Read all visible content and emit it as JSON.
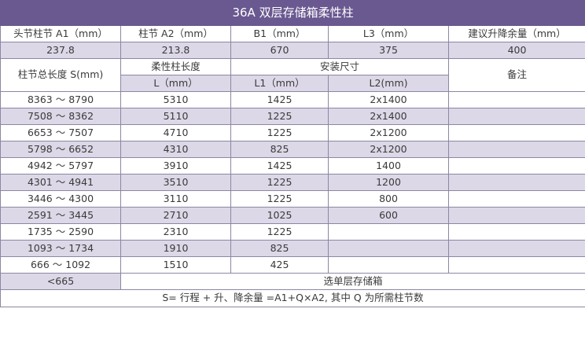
{
  "title": "36A 双层存储箱柔性柱",
  "header1": {
    "head_col": "头节柱节 A1（mm）",
    "col_a2": "柱节 A2（mm）",
    "col_b1": "B1（mm）",
    "col_l3": "L3（mm）",
    "col_lift": "建议升降余量（mm）"
  },
  "values1": {
    "a1": "237.8",
    "a2": "213.8",
    "b1": "670",
    "l3": "375",
    "lift": "400"
  },
  "header2": {
    "total_len": "柱节总长度 S(mm)",
    "flex_len": "柔性柱长度",
    "install_size": "安装尺寸",
    "remark": "备注",
    "l_mm": "L（mm）",
    "l1_mm": "L1（mm）",
    "l2_mm": "L2(mm)"
  },
  "rows": [
    {
      "s": "8363 ～ 8790",
      "l": "5310",
      "l1": "1425",
      "l2": "2x1400",
      "shade": false
    },
    {
      "s": "7508 ～ 8362",
      "l": "5110",
      "l1": "1225",
      "l2": "2x1400",
      "shade": true
    },
    {
      "s": "6653 ～ 7507",
      "l": "4710",
      "l1": "1225",
      "l2": "2x1200",
      "shade": false
    },
    {
      "s": "5798 ～ 6652",
      "l": "4310",
      "l1": "825",
      "l2": "2x1200",
      "shade": true
    },
    {
      "s": "4942 ～ 5797",
      "l": "3910",
      "l1": "1425",
      "l2": "1400",
      "shade": false
    },
    {
      "s": "4301 ～ 4941",
      "l": "3510",
      "l1": "1225",
      "l2": "1200",
      "shade": true
    },
    {
      "s": "3446 ～ 4300",
      "l": "3110",
      "l1": "1225",
      "l2": "800",
      "shade": false
    },
    {
      "s": "2591 ～ 3445",
      "l": "2710",
      "l1": "1025",
      "l2": "600",
      "shade": true
    },
    {
      "s": "1735 ～ 2590",
      "l": "2310",
      "l1": "1225",
      "l2": "",
      "shade": false
    },
    {
      "s": "1093 ～ 1734",
      "l": "1910",
      "l1": "825",
      "l2": "",
      "shade": true
    },
    {
      "s": "666 ～ 1092",
      "l": "1510",
      "l1": "425",
      "l2": "",
      "shade": false
    }
  ],
  "last_row": {
    "s": "<665",
    "note": "选单层存储箱"
  },
  "footer": "S= 行程 + 升、降余量 =A1+Q×A2, 其中 Q 为所需柱节数",
  "colors": {
    "title_bg": "#6a5890",
    "shade_bg": "#dcd8e7",
    "border": "#8d86a3"
  }
}
